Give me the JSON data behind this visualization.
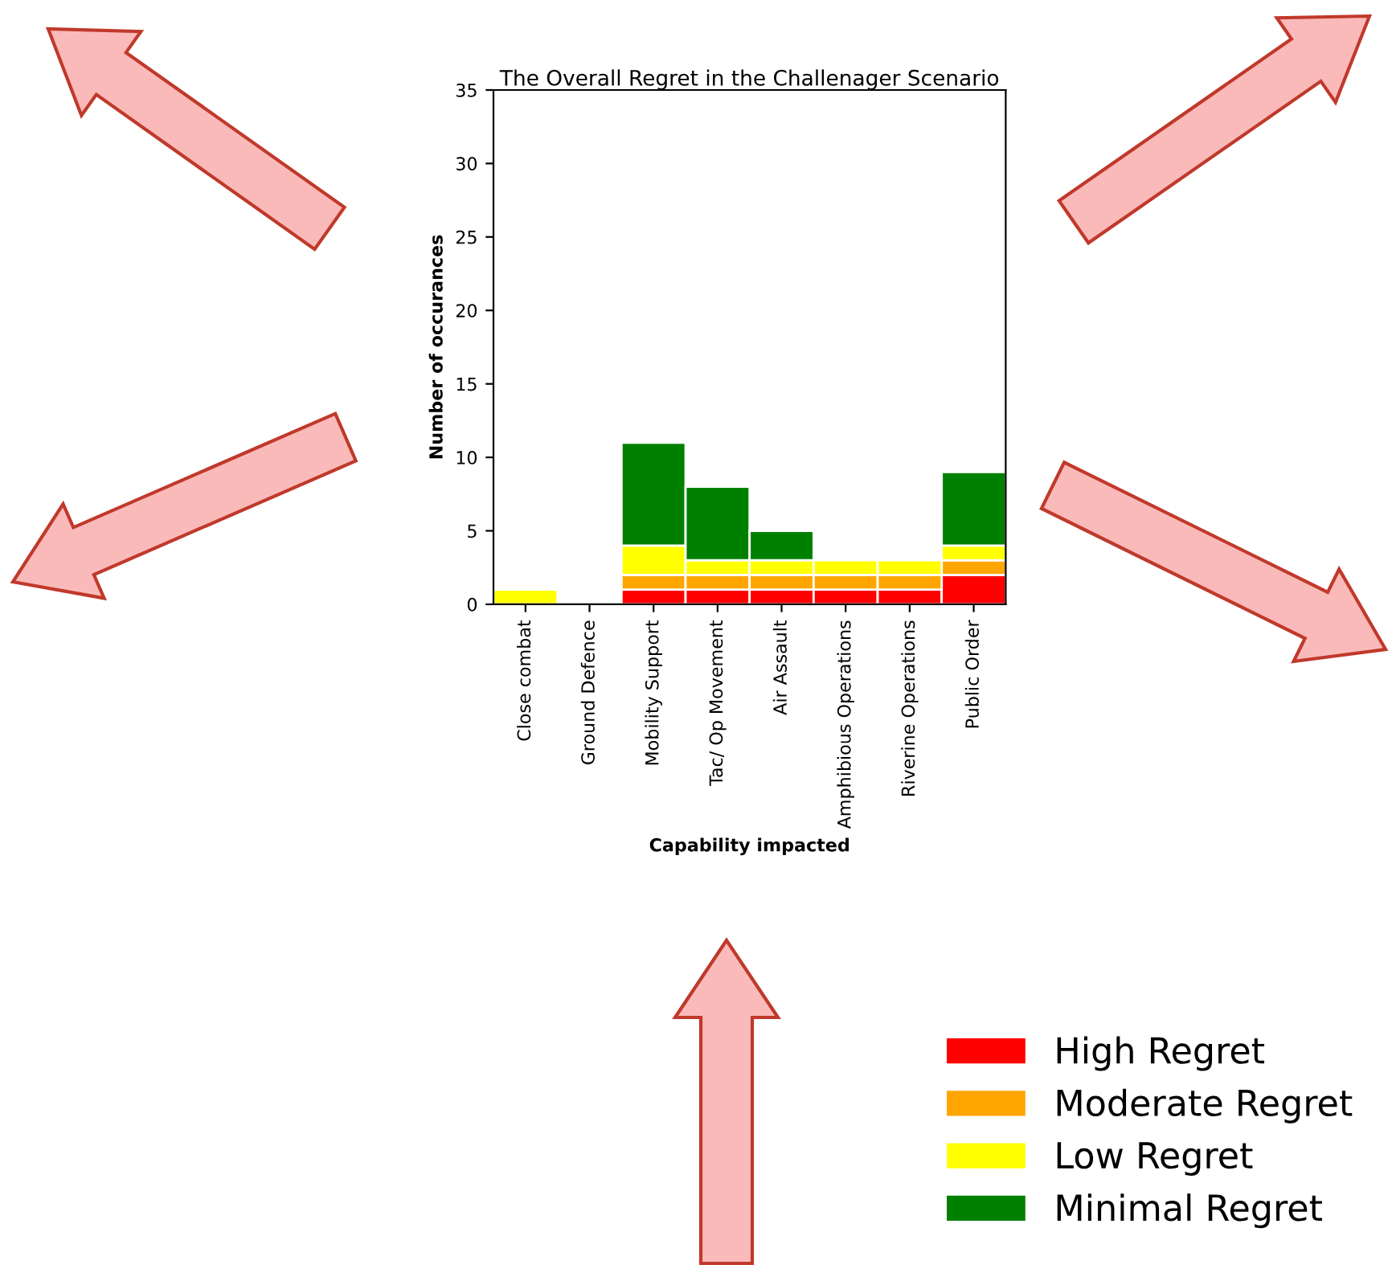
{
  "chart_data": {
    "type": "bar",
    "stacked": true,
    "title": "The Overall Regret in the Challenager Scenario",
    "xlabel": "Capability impacted",
    "ylabel": "Number of occurances",
    "categories": [
      "Close combat",
      "Ground Defence",
      "Mobility Support",
      "Tac/ Op Movement",
      "Air Assault",
      "Amphibious Operations",
      "Riverine Operations",
      "Public Order"
    ],
    "series": [
      {
        "name": "High Regret",
        "color": "#ff0000",
        "values": [
          0,
          0,
          1,
          1,
          1,
          1,
          1,
          2
        ]
      },
      {
        "name": "Moderate Regret",
        "color": "#ffa500",
        "values": [
          0,
          0,
          1,
          1,
          1,
          1,
          1,
          1
        ]
      },
      {
        "name": "Low Regret",
        "color": "#ffff00",
        "values": [
          1,
          0,
          2,
          1,
          1,
          1,
          1,
          1
        ]
      },
      {
        "name": "Minimal Regret",
        "color": "#008000",
        "values": [
          0,
          0,
          7,
          5,
          2,
          0,
          0,
          5
        ]
      }
    ],
    "ylim": [
      0,
      35
    ],
    "yticks": [
      0,
      5,
      10,
      15,
      20,
      25,
      30,
      35
    ],
    "grid": false,
    "legend": "bottom right"
  }
}
